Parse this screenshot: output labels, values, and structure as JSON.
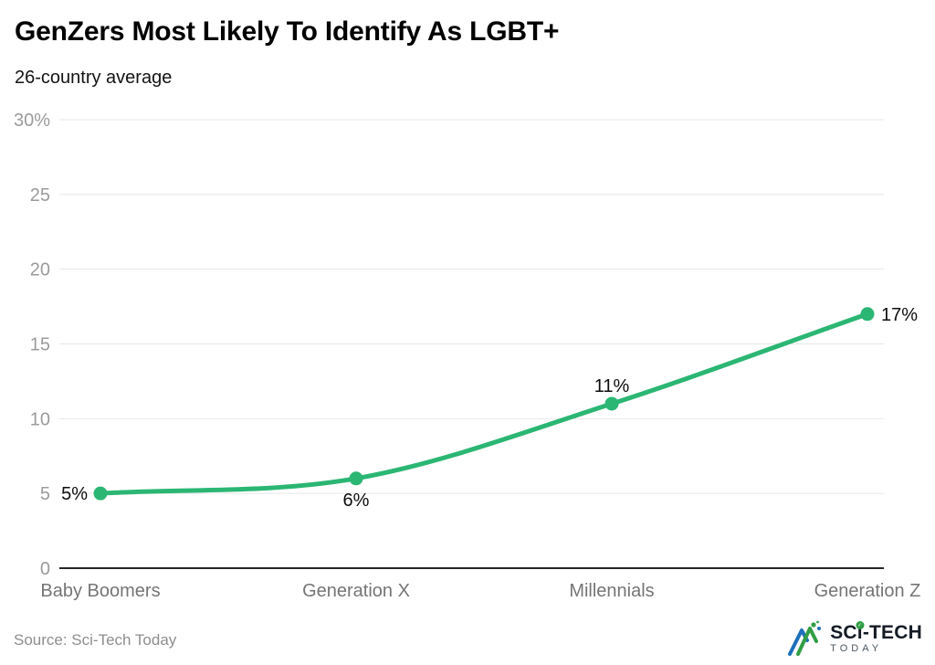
{
  "header": {
    "title": "GenZers Most Likely To Identify As LGBT+",
    "subtitle": "26-country average"
  },
  "chart_data": {
    "type": "line",
    "title": "GenZers Most Likely To Identify As LGBT+",
    "subtitle": "26-country average",
    "categories": [
      "Baby Boomers",
      "Generation X",
      "Millennials",
      "Generation Z"
    ],
    "values": [
      5,
      6,
      11,
      17
    ],
    "data_labels": [
      "5%",
      "6%",
      "11%",
      "17%"
    ],
    "label_placements": [
      "left",
      "below",
      "above",
      "right"
    ],
    "xlabel": "",
    "ylabel": "",
    "ylim": [
      0,
      30
    ],
    "yticks": [
      0,
      5,
      10,
      15,
      20,
      25,
      30
    ],
    "ytick_labels": [
      "0",
      "5",
      "10",
      "15",
      "20",
      "25",
      "30%"
    ],
    "grid": true,
    "legend": false,
    "smooth": true,
    "line_color": "#2bb673",
    "marker_color": "#2bb673",
    "colors": {
      "grid": "#e7e7e7",
      "axis": "#262626",
      "ytick": "#9b9b9b",
      "xtick": "#757575",
      "datalabel": "#0d0d0d"
    }
  },
  "footer": {
    "source": "Source: Sci-Tech Today"
  },
  "logo": {
    "part_sc": "SC",
    "part_i": "i",
    "part_tech": "-TECH",
    "check": "✓",
    "secondary": "TODAY",
    "brand_blue": "#1d6fba",
    "brand_green": "#2f9e44"
  }
}
